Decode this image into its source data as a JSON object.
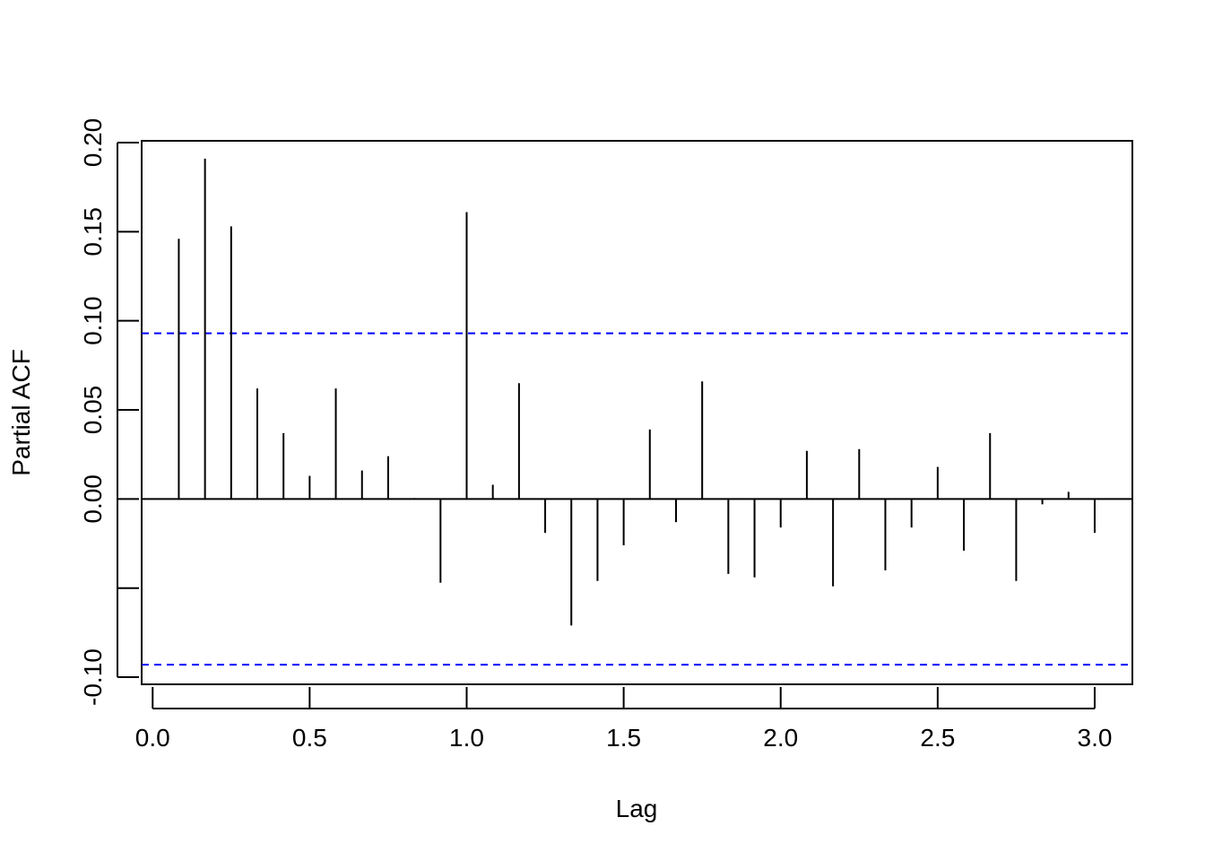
{
  "chart_data": {
    "type": "bar",
    "title": "",
    "xlabel": "Lag",
    "ylabel": "Partial ACF",
    "xlim": [
      -0.035,
      3.12
    ],
    "ylim": [
      -0.104,
      0.201
    ],
    "x_ticks": [
      0.0,
      0.5,
      1.0,
      1.5,
      2.0,
      2.5,
      3.0
    ],
    "x_tick_labels": [
      "0.0",
      "0.5",
      "1.0",
      "1.5",
      "2.0",
      "2.5",
      "3.0"
    ],
    "y_ticks": [
      -0.1,
      -0.05,
      0.0,
      0.05,
      0.1,
      0.15,
      0.2
    ],
    "y_tick_labels": [
      "-0.10",
      "",
      "0.00",
      "0.05",
      "0.10",
      "0.15",
      "0.20"
    ],
    "confidence_bounds": [
      0.093,
      -0.093
    ],
    "colors": {
      "spikes": "#000000",
      "bounds": "#0000ff",
      "axis": "#000000"
    },
    "series": [
      {
        "lag": [
          0.0833,
          0.1667,
          0.25,
          0.3333,
          0.4167,
          0.5,
          0.5833,
          0.6667,
          0.75,
          0.8333,
          0.9167,
          1.0,
          1.0833,
          1.1667,
          1.25,
          1.3333,
          1.4167,
          1.5,
          1.5833,
          1.6667,
          1.75,
          1.8333,
          1.9167,
          2.0,
          2.0833,
          2.1667,
          2.25,
          2.3333,
          2.4167,
          2.5,
          2.5833,
          2.6667,
          2.75,
          2.8333,
          2.9167,
          3.0
        ],
        "values": [
          0.146,
          0.191,
          0.153,
          0.062,
          0.037,
          0.013,
          0.062,
          0.016,
          0.024,
          0.0005,
          -0.047,
          0.161,
          0.008,
          0.065,
          -0.019,
          -0.071,
          -0.046,
          -0.026,
          0.039,
          -0.013,
          0.066,
          -0.042,
          -0.044,
          -0.016,
          0.027,
          -0.049,
          0.028,
          -0.04,
          -0.016,
          0.018,
          -0.029,
          0.037,
          -0.046,
          -0.003,
          0.004,
          -0.019
        ]
      }
    ]
  }
}
